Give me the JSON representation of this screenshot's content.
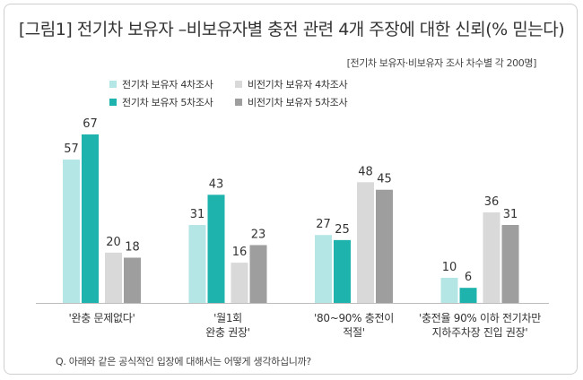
{
  "chart_data": {
    "type": "bar",
    "title": "[그림1] 전기차 보유자 –비보유자별 충전 관련 4개 주장에 대한  신뢰(% 믿는다)",
    "subtitle": "[전기차 보유자·비보유자 조사 차수별  각 200명]",
    "categories": [
      [
        "'완충 문제없다'"
      ],
      [
        "'월1회",
        "완충 권장'"
      ],
      [
        "'80~90% 충전이",
        "적절'"
      ],
      [
        "'충전율 90% 이하 전기차만",
        "지하주차장 진입 권장'"
      ]
    ],
    "series": [
      {
        "name": "전기차 보유자 4차조사",
        "color": "#b5e6e6",
        "values": [
          57,
          31,
          27,
          10
        ]
      },
      {
        "name": "전기차 보유자 5차조사",
        "color": "#1fb3ad",
        "values": [
          67,
          43,
          25,
          6
        ]
      },
      {
        "name": "비전기차 보유자 4차조사",
        "color": "#d9d9d9",
        "values": [
          20,
          16,
          48,
          36
        ]
      },
      {
        "name": "비전기차 보유자 5차조사",
        "color": "#9e9e9e",
        "values": [
          18,
          23,
          45,
          31
        ]
      }
    ],
    "ylim": [
      0,
      67
    ],
    "legend": "top-left",
    "grid": false,
    "footnote": "Q. 아래와 같은 공식적인 입장에 대해서는 어떻게 생각하십니까?"
  }
}
